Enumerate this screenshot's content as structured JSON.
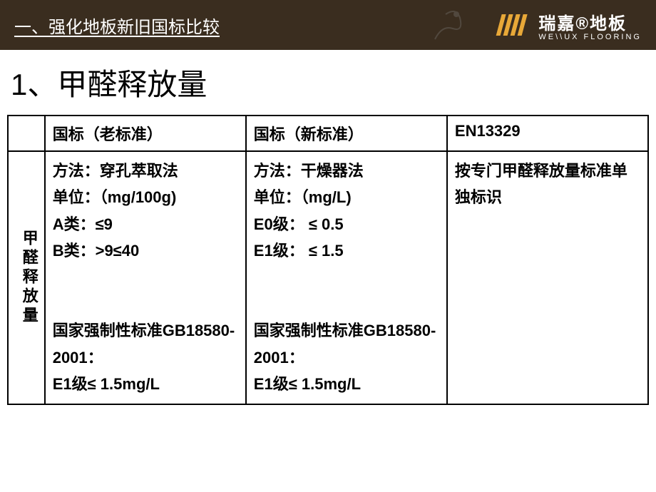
{
  "header": {
    "title": "一、强化地板新旧国标比较",
    "logo_cn": "瑞嘉®地板",
    "logo_en": "WE\\\\UX FLOORING"
  },
  "main_title": "1、甲醛释放量",
  "table": {
    "headers": {
      "empty": "",
      "col1": "国标（老标准）",
      "col2": "国标（新标准）",
      "col3": "EN13329"
    },
    "row_label": "甲醛释放量",
    "cells": {
      "old_standard": "方法：穿孔萃取法\n单位：（mg/100g)\nA类：≤9\nB类：>9≤40\n\n国家强制性标准GB18580-2001：\nE1级≤ 1.5mg/L",
      "new_standard": "方法：干燥器法\n单位：（mg/L)\nE0级： ≤ 0.5\nE1级： ≤ 1.5\n\n国家强制性标准GB18580-2001：\nE1级≤ 1.5mg/L",
      "en_standard": "按专门甲醛释放量标准单独标识"
    }
  },
  "colors": {
    "header_bg": "#3a2d1f",
    "header_text": "#ffffff",
    "body_bg": "#ffffff",
    "border": "#000000",
    "logo_stripe": "#e8a838"
  }
}
